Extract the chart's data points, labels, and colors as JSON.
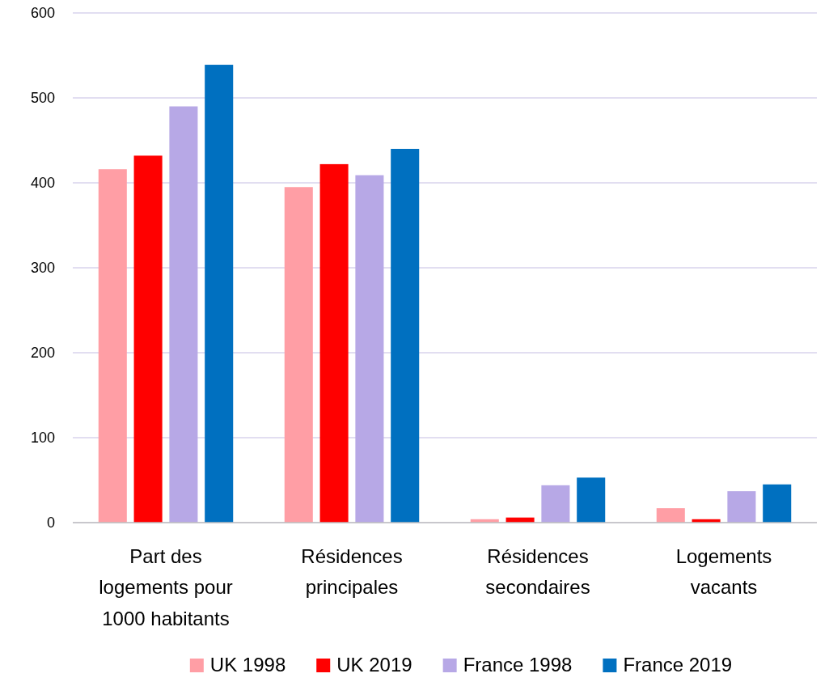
{
  "chart_data": {
    "type": "bar",
    "categories": [
      "Part des logements pour 1000 habitants",
      "Résidences principales",
      "Résidences secondaires",
      "Logements vacants"
    ],
    "series": [
      {
        "name": "UK 1998",
        "color": "#ff9ea5",
        "values": [
          416,
          395,
          4,
          17
        ]
      },
      {
        "name": "UK 2019",
        "color": "#ff0000",
        "values": [
          432,
          422,
          6,
          4
        ]
      },
      {
        "name": "France 1998",
        "color": "#b7a8e6",
        "values": [
          490,
          409,
          44,
          37
        ]
      },
      {
        "name": "France 2019",
        "color": "#0070c0",
        "values": [
          539,
          440,
          53,
          45
        ]
      }
    ],
    "ylim": [
      0,
      600
    ],
    "yticks": [
      0,
      100,
      200,
      300,
      400,
      500,
      600
    ],
    "grid": "y",
    "legend": "bottom"
  }
}
